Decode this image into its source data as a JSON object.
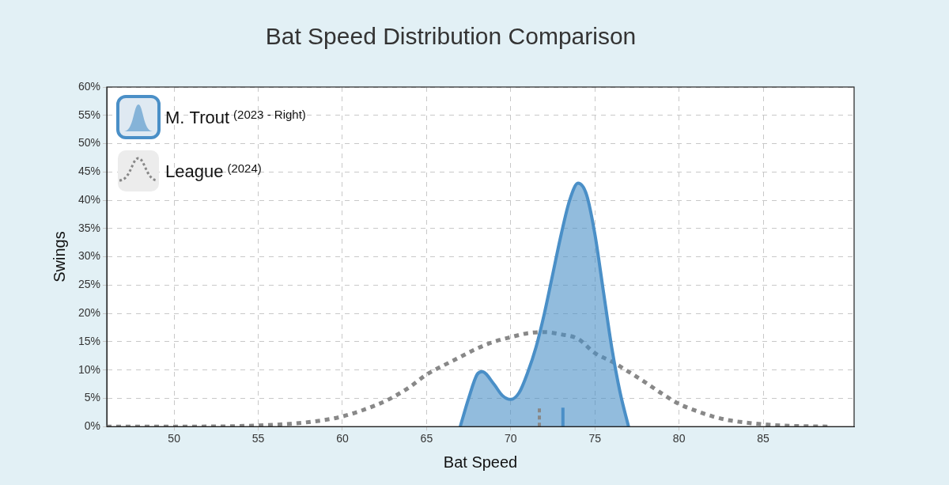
{
  "chart_data": {
    "type": "line",
    "title": "Bat Speed Distribution Comparison",
    "x_label": "Bat Speed",
    "y_label": "Swings",
    "xlim": [
      46,
      90.4
    ],
    "xticks": [
      50,
      55,
      60,
      65,
      70,
      75,
      80,
      85
    ],
    "ylim": [
      0,
      60
    ],
    "yticks": [
      {
        "value": 0,
        "label": "0%"
      },
      {
        "value": 5,
        "label": "5%"
      },
      {
        "value": 10,
        "label": "10%"
      },
      {
        "value": 15,
        "label": "15%"
      },
      {
        "value": 20,
        "label": "20%"
      },
      {
        "value": 25,
        "label": "25%"
      },
      {
        "value": 30,
        "label": "30%"
      },
      {
        "value": 35,
        "label": "35%"
      },
      {
        "value": 40,
        "label": "40%"
      },
      {
        "value": 45,
        "label": "45%"
      },
      {
        "value": 50,
        "label": "50%"
      },
      {
        "value": 55,
        "label": "55%"
      },
      {
        "value": 60,
        "label": "60%"
      }
    ],
    "grid": true,
    "legend": "upper left",
    "series": [
      {
        "name": "M. Trout (2023 - Right)",
        "type": "area",
        "color": "#4a8fc7",
        "line_style": "solid",
        "x": [
          67,
          67.5,
          68,
          68.3,
          69,
          69.5,
          70,
          70.5,
          71,
          71.5,
          72,
          72.5,
          73,
          73.5,
          74,
          74.5,
          75,
          75.5,
          76,
          76.5,
          77
        ],
        "values": [
          0,
          5,
          9.2,
          9.7,
          7.5,
          5.5,
          4.8,
          6,
          9.5,
          14,
          20,
          27,
          34,
          40,
          43,
          41,
          34,
          24,
          14,
          6,
          0
        ],
        "mean": 73.1
      },
      {
        "name": "League (2024)",
        "type": "line",
        "color": "#888888",
        "line_style": "dotted",
        "x": [
          46,
          50,
          55,
          58,
          60,
          62,
          63,
          64,
          65,
          66,
          67,
          68,
          69,
          70,
          71,
          72,
          73,
          74,
          75,
          76,
          77,
          78,
          79,
          80,
          81,
          82,
          83,
          84,
          85,
          86,
          87,
          89
        ],
        "values": [
          0,
          0,
          0.2,
          0.8,
          1.8,
          3.8,
          5.2,
          7,
          9.2,
          10.8,
          12.3,
          13.8,
          15,
          15.8,
          16.5,
          16.7,
          16.3,
          15.5,
          13,
          11.5,
          9.7,
          7.8,
          5.8,
          4,
          2.8,
          1.8,
          1.1,
          0.7,
          0.4,
          0.2,
          0.1,
          0
        ],
        "mean": 71.7
      }
    ]
  }
}
